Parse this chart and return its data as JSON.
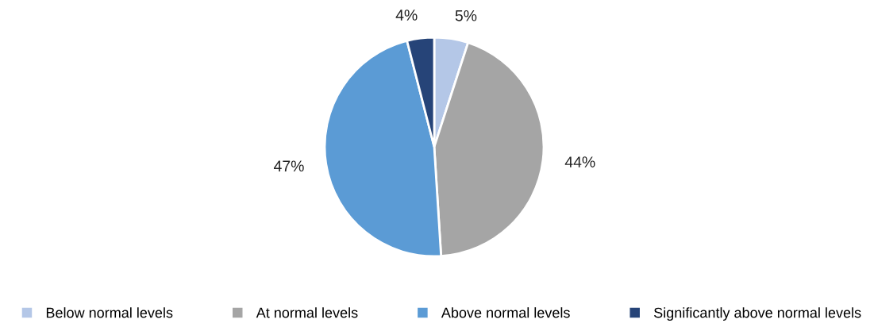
{
  "chart_data": {
    "type": "pie",
    "categories": [
      "Below normal levels",
      "At normal levels",
      "Above normal levels",
      "Significantly above normal levels"
    ],
    "values": [
      5,
      44,
      47,
      4
    ],
    "value_labels": [
      "5%",
      "44%",
      "47%",
      "4%"
    ],
    "colors": [
      "#b4c7e7",
      "#a5a5a5",
      "#5b9bd5",
      "#264478"
    ],
    "legend": "bottom"
  }
}
